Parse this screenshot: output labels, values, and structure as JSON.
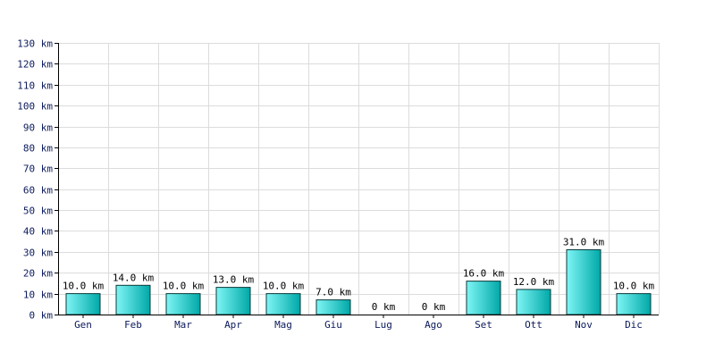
{
  "chart_data": {
    "type": "bar",
    "categories": [
      "Gen",
      "Feb",
      "Mar",
      "Apr",
      "Mag",
      "Giu",
      "Lug",
      "Ago",
      "Set",
      "Ott",
      "Nov",
      "Dic"
    ],
    "values": [
      10,
      14,
      10,
      13,
      10,
      7,
      0,
      0,
      16,
      12,
      31,
      10
    ],
    "data_labels": [
      "10.0 km",
      "14.0 km",
      "10.0 km",
      "13.0 km",
      "10.0 km",
      "7.0 km",
      "0 km",
      "0 km",
      "16.0 km",
      "12.0 km",
      "31.0 km",
      "10.0 km"
    ],
    "y_ticks": [
      0,
      10,
      20,
      30,
      40,
      50,
      60,
      70,
      80,
      90,
      100,
      110,
      120,
      130
    ],
    "y_tick_labels": [
      "0 km",
      "10 km",
      "20 km",
      "30 km",
      "40 km",
      "50 km",
      "60 km",
      "70 km",
      "80 km",
      "90 km",
      "100 km",
      "110 km",
      "120 km",
      "130 km"
    ],
    "ylim": [
      0,
      130
    ],
    "grid": true,
    "legend": "none",
    "colors": {
      "bar_light": "#7ff5f5",
      "bar_dark": "#00a8a8",
      "bar_border": "#0a3a3a",
      "grid": "#dcdcdc",
      "axis": "#000000",
      "tick_text": "#0b1a5c"
    }
  }
}
